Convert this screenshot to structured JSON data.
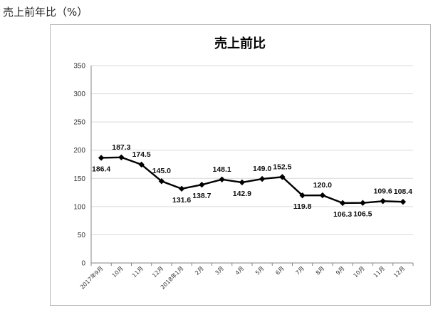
{
  "page": {
    "heading": "売上前年比（%）"
  },
  "chart_data": {
    "type": "line",
    "title": "売上前比",
    "xlabel": "",
    "ylabel": "",
    "categories": [
      "2017年9月",
      "10月",
      "11月",
      "12月",
      "2018年1月",
      "2月",
      "3月",
      "4月",
      "5月",
      "6月",
      "7月",
      "8月",
      "9月",
      "10月",
      "11月",
      "12月"
    ],
    "series": [
      {
        "values": [
          186.4,
          187.3,
          174.5,
          145.0,
          131.6,
          138.7,
          148.1,
          142.9,
          149.0,
          152.5,
          119.8,
          120.0,
          106.3,
          106.5,
          109.6,
          108.4
        ],
        "labels": [
          "186.4",
          "187.3",
          "174.5",
          "145.0",
          "131.6",
          "138.7",
          "148.1",
          "142.9",
          "149.0",
          "152.5",
          "119.8",
          "120.0",
          "106.3",
          "106.5",
          "109.6",
          "108.4"
        ],
        "label_positions": [
          "below",
          "above",
          "above",
          "above",
          "below",
          "below",
          "above",
          "below",
          "above",
          "above",
          "below",
          "above",
          "below",
          "below",
          "above",
          "above"
        ],
        "color": "#000000",
        "marker": "diamond"
      }
    ],
    "ylim": [
      0,
      350
    ],
    "yticks": [
      "0",
      "50",
      "100",
      "150",
      "200",
      "250",
      "300",
      "350"
    ],
    "grid": true,
    "grid_color": "#d9d9d9",
    "axis_color": "#868686",
    "legend": "none"
  }
}
